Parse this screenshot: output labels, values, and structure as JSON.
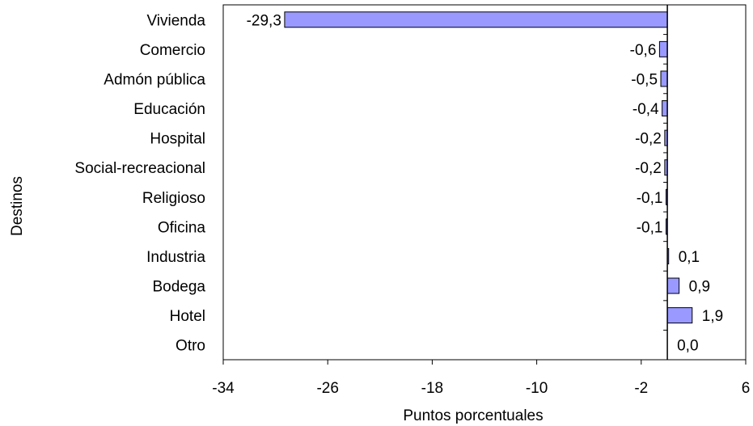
{
  "chart_data": {
    "type": "bar",
    "orientation": "horizontal",
    "ylabel": "Destinos",
    "xlabel": "Puntos  porcentuales",
    "xlim": [
      -34,
      6
    ],
    "xticks": [
      -34,
      -26,
      -18,
      -10,
      -2,
      6
    ],
    "xtick_labels": [
      "-34",
      "-26",
      "-18",
      "-10",
      "-2",
      "6"
    ],
    "categories": [
      "Vivienda",
      "Comercio",
      "Admón pública",
      "Educación",
      "Hospital",
      "Social-recreacional",
      "Religioso",
      "Oficina",
      "Industria",
      "Bodega",
      "Hotel",
      "Otro"
    ],
    "values": [
      -29.3,
      -0.6,
      -0.5,
      -0.4,
      -0.2,
      -0.2,
      -0.1,
      -0.1,
      0.1,
      0.9,
      1.9,
      0.0
    ],
    "value_labels": [
      "-29,3",
      "-0,6",
      "-0,5",
      "-0,4",
      "-0,2",
      "-0,2",
      "-0,1",
      "-0,1",
      "0,1",
      "0,9",
      "1,9",
      "0,0"
    ],
    "bar_color": "#9999ff",
    "grid": false,
    "legend": "none"
  }
}
